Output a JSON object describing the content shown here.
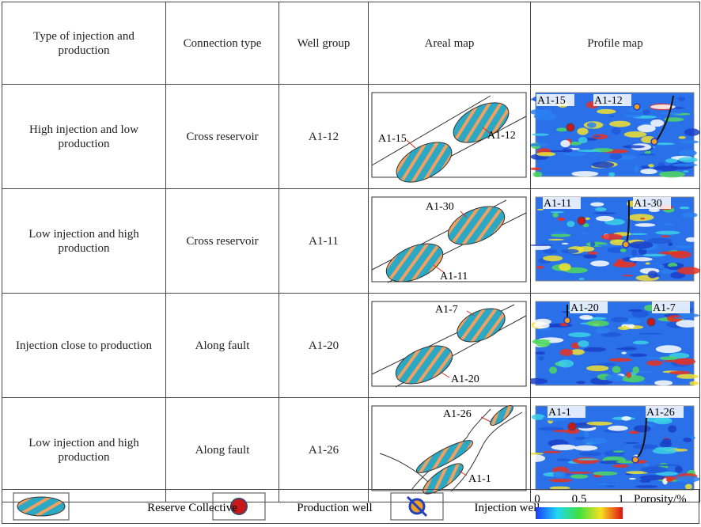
{
  "table": {
    "header": [
      "Type of injection and production",
      "Connection type",
      "Well group",
      "Areal map",
      "Profile map"
    ],
    "rows": [
      {
        "injection_production": "High injection and low production",
        "connection": "Cross reservoir",
        "well_group": "A1-12",
        "areal_labels": [
          "A1-15",
          "A1-12"
        ],
        "profile_labels": [
          "A1-15",
          "A1-12"
        ]
      },
      {
        "injection_production": "Low injection and high production",
        "connection": "Cross reservoir",
        "well_group": "A1-11",
        "areal_labels": [
          "A1-30",
          "A1-11"
        ],
        "profile_labels": [
          "A1-11",
          "A1-30"
        ]
      },
      {
        "injection_production": "Injection close to production",
        "connection": "Along fault",
        "well_group": "A1-20",
        "areal_labels": [
          "A1-7",
          "A1-20"
        ],
        "profile_labels": [
          "A1-20",
          "A1-7"
        ]
      },
      {
        "injection_production": "Low injection and high production",
        "connection": "Along fault",
        "well_group": "A1-26",
        "areal_labels": [
          "A1-26",
          "A1-1"
        ],
        "profile_labels": [
          "A1-1",
          "A1-26"
        ]
      }
    ]
  },
  "legend": {
    "items": [
      "Reserve Collective",
      "Production well",
      "Injection well"
    ],
    "colorbar": {
      "ticks": [
        "0",
        "0.5",
        "1"
      ],
      "label": "Porosity/%"
    }
  }
}
